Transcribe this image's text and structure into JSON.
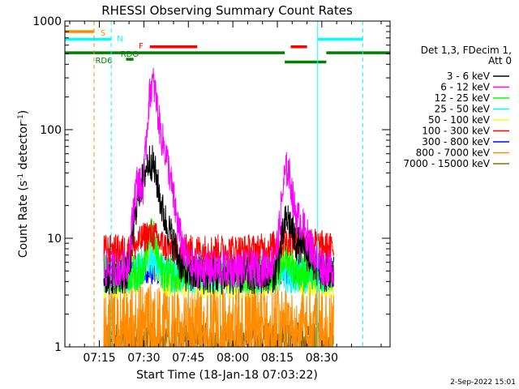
{
  "chart_data": {
    "type": "line",
    "title": "RHESSI Observing Summary Count Rates",
    "xlabel": "Start Time (18-Jan-18 07:03:22)",
    "ylabel_main": "Count Rate (s",
    "ylabel_sup1": "-1",
    "ylabel_mid": " detector",
    "ylabel_sup2": "-1",
    "ylabel_end": ")",
    "y_scale": "log",
    "ylim": [
      1,
      1000
    ],
    "xlim_minutes_after_0700": [
      3.37,
      113
    ],
    "x_ticks": [
      {
        "label": "07:15",
        "minutes": 15
      },
      {
        "label": "07:30",
        "minutes": 30
      },
      {
        "label": "07:45",
        "minutes": 45
      },
      {
        "label": "08:00",
        "minutes": 60
      },
      {
        "label": "08:15",
        "minutes": 75
      },
      {
        "label": "08:30",
        "minutes": 90
      }
    ],
    "y_ticks": [
      {
        "label": "1",
        "value": 1
      },
      {
        "label": "10",
        "value": 10
      },
      {
        "label": "100",
        "value": 100
      },
      {
        "label": "1000",
        "value": 1000
      }
    ],
    "legend_header": [
      "Det 1,3, FDecim 1,",
      "Att 0"
    ],
    "legend_position": "right",
    "series": [
      {
        "name": "3 - 6 keV",
        "color": "#000000",
        "key": "e1"
      },
      {
        "name": "6 - 12 keV",
        "color": "#ff00ff",
        "key": "e2"
      },
      {
        "name": "12 - 25 keV",
        "color": "#00ff00",
        "key": "e3"
      },
      {
        "name": "25 - 50 keV",
        "color": "#00ffff",
        "key": "e4"
      },
      {
        "name": "50 - 100 keV",
        "color": "#ffff00",
        "key": "e5"
      },
      {
        "name": "100 - 300 keV",
        "color": "#ff0000",
        "key": "e6"
      },
      {
        "name": "300 - 800 keV",
        "color": "#0000ff",
        "key": "e7"
      },
      {
        "name": "800 - 7000 keV",
        "color": "#ff8c00",
        "key": "e8"
      },
      {
        "name": "7000 - 15000 keV",
        "color": "#8b6914",
        "key": "e9"
      }
    ],
    "flag_bars": [
      {
        "label": "S",
        "color": "#ff8c00",
        "level": 800,
        "segments": [
          [
            3.4,
            13.2
          ]
        ]
      },
      {
        "label": "N",
        "color": "#00ffff",
        "level": 680,
        "segments": [
          [
            3.4,
            19.0
          ],
          [
            88.6,
            103.8
          ]
        ]
      },
      {
        "label": "F",
        "color": "#ff0000",
        "level": 580,
        "segments": [
          [
            32.0,
            48.0
          ],
          [
            79.5,
            85.0
          ]
        ]
      },
      {
        "label": "RDO",
        "color": "#008000",
        "level": 510,
        "segments": [
          [
            3.4,
            77.5
          ],
          [
            91.5,
            113.0
          ]
        ]
      },
      {
        "label": "",
        "color": "#008000",
        "level": 420,
        "segments": [
          [
            77.5,
            91.5
          ]
        ]
      },
      {
        "label": "",
        "color": "#008000",
        "level": 445,
        "segments": [
          [
            24.0,
            26.5
          ]
        ]
      },
      {
        "label": "RD6",
        "color": "#008000",
        "level": 440,
        "segments": []
      }
    ],
    "vertical_lines": [
      {
        "minutes": 3.4,
        "color": "#00ffff",
        "style": "solid"
      },
      {
        "minutes": 13.2,
        "color": "#ff8c00",
        "style": "dashed"
      },
      {
        "minutes": 19.0,
        "color": "#00ffff",
        "style": "dashed"
      },
      {
        "minutes": 88.6,
        "color": "#00ffff",
        "style": "solid"
      },
      {
        "minutes": 103.8,
        "color": "#00ffff",
        "style": "dashed"
      }
    ],
    "data_window_minutes": [
      16.5,
      94.0
    ],
    "profiles": {
      "e1": {
        "base": 4.5,
        "noise": 1.5,
        "events": [
          [
            28,
            1.8,
            12
          ],
          [
            32,
            3,
            45
          ],
          [
            37,
            4,
            8
          ],
          [
            78.3,
            2,
            8
          ],
          [
            82,
            5,
            4
          ]
        ]
      },
      "e2": {
        "base": 5.2,
        "noise": 1.5,
        "events": [
          [
            28,
            1.8,
            28
          ],
          [
            32.8,
            1.8,
            230
          ],
          [
            35.5,
            3,
            60
          ],
          [
            38,
            4,
            15
          ],
          [
            78.2,
            1.8,
            30
          ],
          [
            81,
            5,
            10
          ]
        ]
      },
      "e3": {
        "base": 4.8,
        "noise": 1.5,
        "events": [
          [
            32.5,
            2,
            6
          ],
          [
            78,
            2,
            2
          ]
        ]
      },
      "e4": {
        "base": 4.6,
        "noise": 1.5,
        "events": [
          [
            32,
            3,
            2
          ]
        ]
      },
      "e5": {
        "base": 4.2,
        "noise": 1.5,
        "events": [
          [
            32,
            3,
            3
          ],
          [
            78,
            3,
            2
          ]
        ]
      },
      "e6": {
        "base": 7.8,
        "noise": 1.4,
        "events": [
          [
            32,
            4,
            3
          ],
          [
            82,
            8,
            2
          ]
        ]
      },
      "e7": {
        "base": 5.0,
        "noise": 1.35,
        "events": []
      },
      "e8": {
        "base": 2.0,
        "noise": 2.0,
        "events": []
      },
      "e9": {
        "base": 1.3,
        "noise": 1.3,
        "events": []
      }
    },
    "footer_date": "2-Sep-2022 15:01"
  }
}
